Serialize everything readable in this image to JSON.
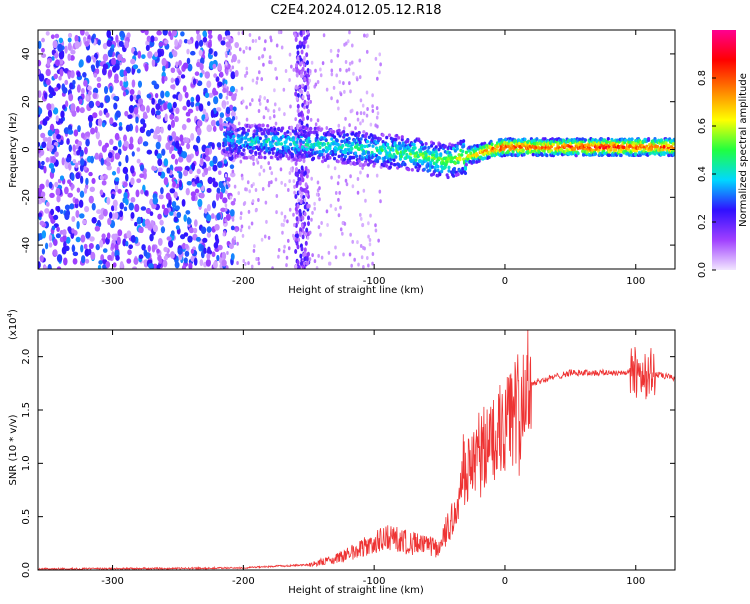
{
  "title": "C2E4.2024.012.05.12.R18",
  "colors": {
    "spectrogram_low": "#9b30ff",
    "snr_line": "#ee3333",
    "colorbar_stops": [
      "#f2e6ff",
      "#a040ff",
      "#3010ff",
      "#00d8ff",
      "#20ff40",
      "#ffff00",
      "#ff8000",
      "#ff0000",
      "#ff0090"
    ]
  },
  "chart_data": [
    {
      "type": "heatmap",
      "name": "spectrogram",
      "xlabel": "Height of straight line (km)",
      "ylabel": "Frequency (Hz)",
      "xlim": [
        -357,
        130
      ],
      "ylim": [
        -50,
        50
      ],
      "x_ticks": [
        -300,
        -200,
        -100,
        0,
        100
      ],
      "x_tick_labels": [
        "-300",
        "-200",
        "-100",
        "0",
        "100"
      ],
      "y_ticks": [
        -40,
        -20,
        0,
        20,
        40
      ],
      "y_tick_labels": [
        "-40",
        "-20",
        "0",
        "20",
        "40"
      ],
      "noise_region_x": [
        -357,
        -215
      ],
      "noise_streak_x": [
        -160,
        -150
      ],
      "signal_track": {
        "x": [
          -215,
          -180,
          -140,
          -100,
          -70,
          -45,
          -30,
          -10,
          0,
          30,
          70,
          100,
          130
        ],
        "freq": [
          4,
          3,
          2,
          0,
          -2,
          -5,
          -3,
          0,
          1,
          1,
          1,
          1,
          1
        ],
        "amplitude": [
          0.35,
          0.4,
          0.42,
          0.45,
          0.5,
          0.55,
          0.65,
          0.8,
          0.85,
          0.8,
          0.9,
          0.85,
          0.8
        ]
      },
      "colorbar": {
        "label": "Normalized spectral amplitude",
        "range": [
          0,
          1
        ],
        "ticks": [
          0.0,
          0.2,
          0.4,
          0.6,
          0.8
        ],
        "tick_labels": [
          "0.0",
          "0.2",
          "0.4",
          "0.6",
          "0.8"
        ]
      }
    },
    {
      "type": "line",
      "name": "snr",
      "xlabel": "Height of straight line (km)",
      "ylabel": "SNR (10 * v/v)",
      "y_scale_label": "(x10",
      "y_scale_exponent": "4",
      "xlim": [
        -357,
        130
      ],
      "ylim": [
        0,
        22500
      ],
      "x_ticks": [
        -300,
        -200,
        -100,
        0,
        100
      ],
      "x_tick_labels": [
        "-300",
        "-200",
        "-100",
        "0",
        "100"
      ],
      "y_ticks": [
        0,
        5000,
        10000,
        15000,
        20000
      ],
      "y_tick_labels": [
        "0.0",
        "0.5",
        "1.0",
        "1.5",
        "2.0"
      ],
      "envelope": {
        "x": [
          -357,
          -250,
          -200,
          -150,
          -130,
          -110,
          -90,
          -70,
          -50,
          -40,
          -30,
          -20,
          -10,
          0,
          20,
          50,
          80,
          100,
          110,
          120,
          130
        ],
        "y": [
          100,
          150,
          200,
          500,
          1000,
          2000,
          3000,
          2500,
          2000,
          5000,
          9000,
          11000,
          12000,
          13500,
          17500,
          18500,
          18500,
          18500,
          18500,
          18200,
          18000
        ]
      }
    }
  ]
}
